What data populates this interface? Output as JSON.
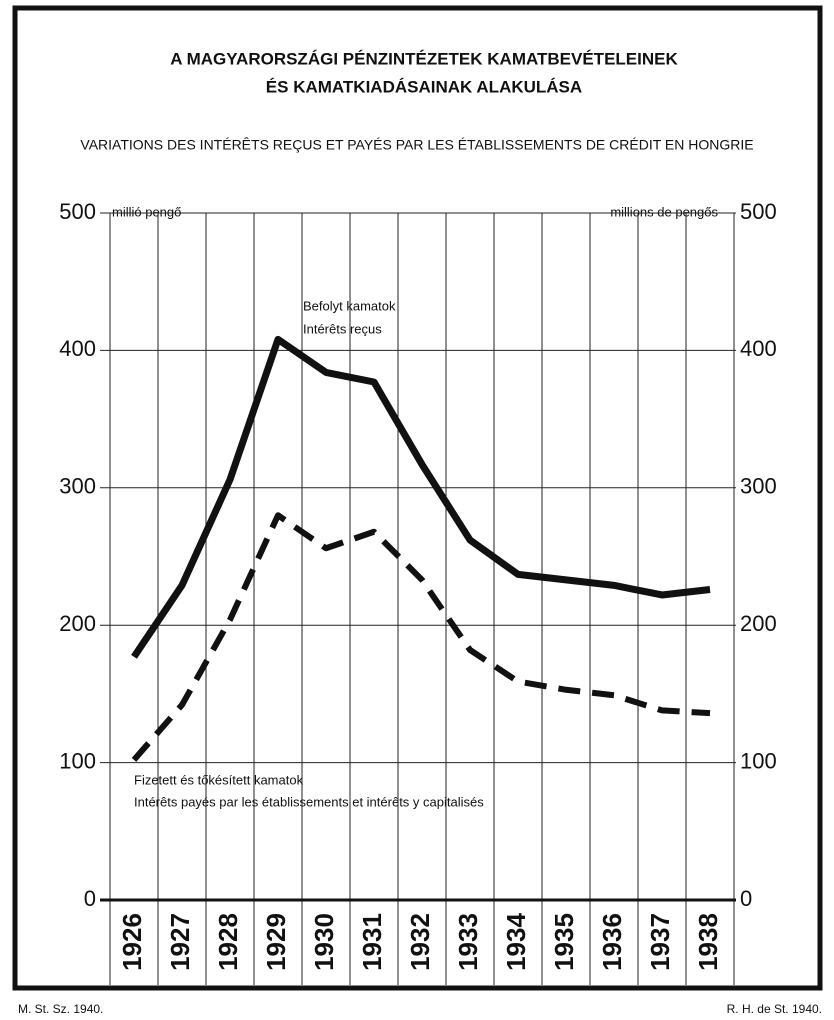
{
  "chart_data": {
    "type": "line",
    "title": [
      "A MAGYARORSZÁGI PÉNZINTÉZETEK KAMATBEVÉTELEINEK",
      "ÉS KAMATKIADÁSAINAK ALAKULÁSA"
    ],
    "subtitle": "VARIATIONS DES INTÉRÊTS REÇUS ET PAYÉS PAR LES ÉTABLISSEMENTS DE CRÉDIT EN HONGRIE",
    "ylabel": "millió pengő",
    "y2label": "millions de pengős",
    "categories": [
      "1926",
      "1927",
      "1928",
      "1929",
      "1930",
      "1931",
      "1932",
      "1933",
      "1934",
      "1935",
      "1936",
      "1937",
      "1938"
    ],
    "series": [
      {
        "name": "Befolyt kamatok",
        "name_fr": "Intérêts reçus",
        "color": "#111",
        "style": "solid",
        "values": [
          177,
          229,
          306,
          408,
          384,
          377,
          317,
          262,
          237,
          233,
          229,
          222,
          226
        ]
      },
      {
        "name": "Fizetett és tőkésített kamatok",
        "name_fr": "Intérêts payés par les établissements et intérêts y capitalisés",
        "color": "#111",
        "style": "dashed",
        "values": [
          102,
          142,
          204,
          280,
          256,
          268,
          233,
          182,
          159,
          153,
          149,
          138,
          136
        ]
      }
    ],
    "ylim": [
      0,
      500
    ],
    "yticks": [
      0,
      100,
      200,
      300,
      400,
      500
    ],
    "y2lim": [
      0,
      500
    ],
    "y2ticks": [
      0,
      100,
      200,
      300,
      400,
      500
    ],
    "grid": true,
    "footer_left": "M. St. Sz. 1940.",
    "footer_right": "R. H. de St. 1940."
  }
}
